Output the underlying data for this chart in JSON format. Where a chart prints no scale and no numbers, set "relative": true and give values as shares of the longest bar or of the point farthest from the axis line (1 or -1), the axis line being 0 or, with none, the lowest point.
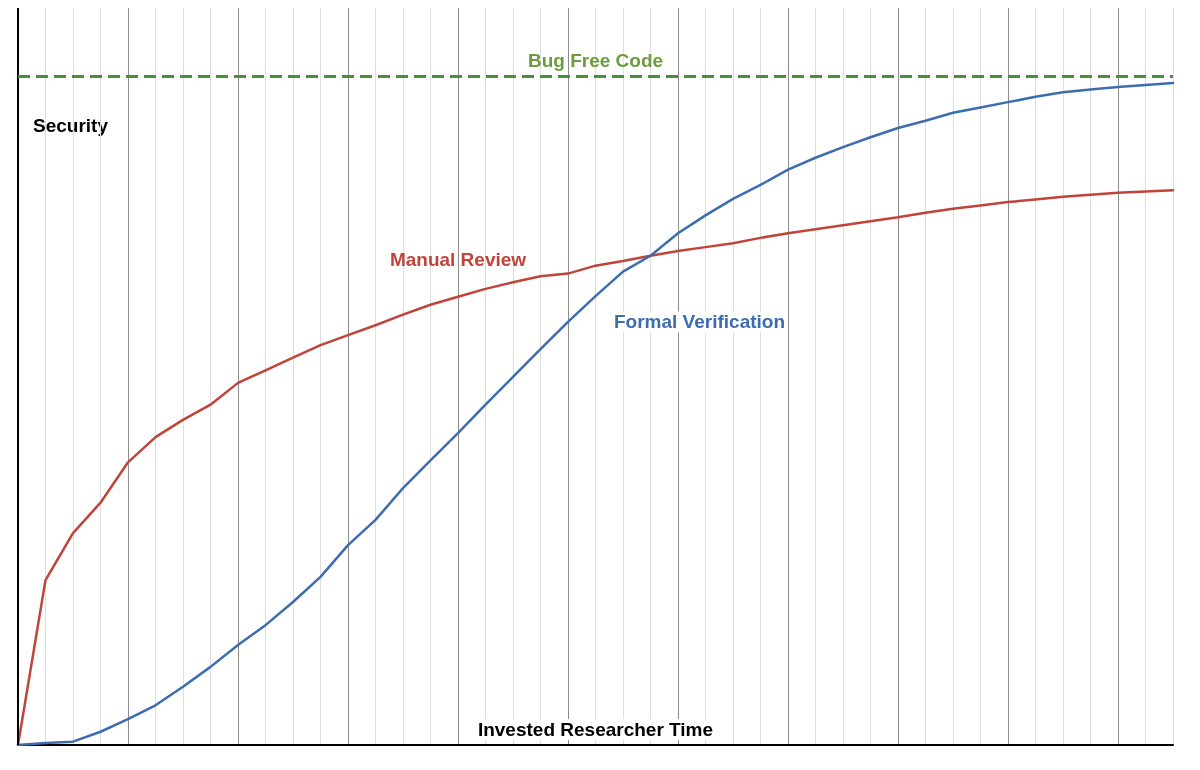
{
  "chart_data": {
    "type": "line",
    "relative": true,
    "xlabel": "Invested Researcher Time",
    "ylabel": "Security",
    "grid": "x",
    "marker": "none",
    "line_style": "solid",
    "categories": [
      null,
      null,
      null,
      null,
      null,
      null,
      null,
      null,
      null,
      null,
      null,
      null,
      null,
      null,
      null,
      null,
      null,
      null,
      null,
      null,
      null,
      null,
      null,
      null,
      null,
      null,
      null,
      null,
      null,
      null,
      null,
      null,
      null,
      null,
      null,
      null,
      null,
      null,
      null,
      null,
      null,
      null,
      null
    ],
    "series": [
      {
        "name": "Manual Review",
        "color": "#c0443a",
        "values": [
          0,
          0.249,
          0.32,
          0.366,
          0.427,
          0.465,
          0.491,
          0.514,
          0.547,
          0.566,
          0.585,
          0.604,
          0.619,
          0.634,
          0.65,
          0.665,
          0.677,
          0.689,
          0.699,
          0.708,
          0.712,
          0.724,
          0.731,
          0.739,
          0.746,
          0.752,
          0.758,
          0.766,
          0.773,
          0.779,
          0.785,
          0.791,
          0.797,
          0.804,
          0.81,
          0.815,
          0.82,
          0.824,
          0.828,
          0.831,
          0.834,
          0.836,
          0.838
        ]
      },
      {
        "name": "Formal Verification",
        "color": "#3d6db0",
        "values": [
          0,
          0.003,
          0.005,
          0.02,
          0.039,
          0.06,
          0.088,
          0.118,
          0.151,
          0.181,
          0.216,
          0.254,
          0.302,
          0.34,
          0.388,
          0.43,
          0.471,
          0.514,
          0.556,
          0.598,
          0.639,
          0.678,
          0.715,
          0.739,
          0.773,
          0.8,
          0.825,
          0.846,
          0.869,
          0.887,
          0.903,
          0.918,
          0.932,
          0.943,
          0.955,
          0.963,
          0.971,
          0.979,
          0.986,
          0.99,
          0.994,
          0.997,
          1
        ]
      }
    ],
    "ref_lines": [
      {
        "axis": "y",
        "value": 1.012,
        "label": "Bug Free Code",
        "color": "#4a8f3c",
        "line_style": "dashed"
      }
    ]
  }
}
